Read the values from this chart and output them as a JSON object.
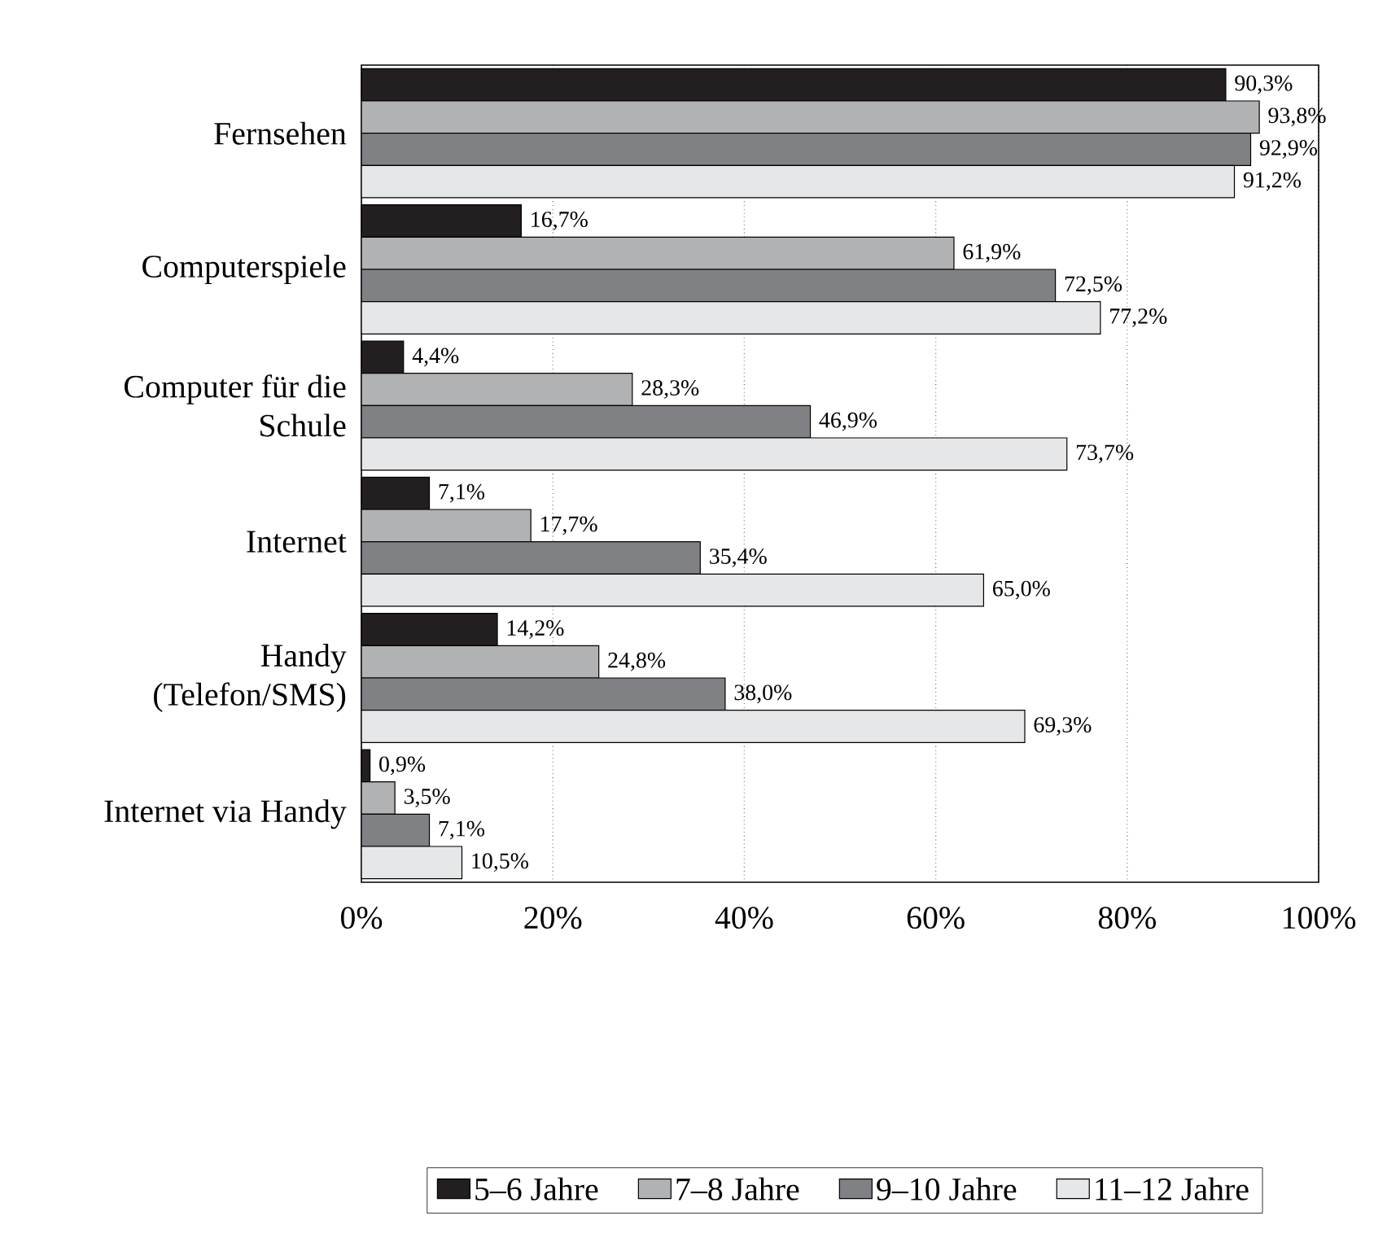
{
  "chart_data": {
    "type": "bar",
    "orientation": "horizontal",
    "categories": [
      "Fernsehen",
      "Computerspiele",
      "Computer für die Schule",
      "Internet",
      "Handy (Telefon/SMS)",
      "Internet via Handy"
    ],
    "series": [
      {
        "name": "5–6 Jahre",
        "color": "#231f20",
        "values": [
          90.3,
          16.7,
          4.4,
          7.1,
          14.2,
          0.9
        ],
        "value_labels": [
          "90,3%",
          "16,7%",
          "4,4%",
          "7,1%",
          "14,2%",
          "0,9%"
        ]
      },
      {
        "name": "7–8 Jahre",
        "color": "#b1b2b4",
        "values": [
          93.8,
          61.9,
          28.3,
          17.7,
          24.8,
          3.5
        ],
        "value_labels": [
          "93,8%",
          "61,9%",
          "28,3%",
          "17,7%",
          "24,8%",
          "3,5%"
        ]
      },
      {
        "name": "9–10 Jahre",
        "color": "#808184",
        "values": [
          92.9,
          72.5,
          46.9,
          35.4,
          38.0,
          7.1
        ],
        "value_labels": [
          "92,9%",
          "72,5%",
          "46,9%",
          "35,4%",
          "38,0%",
          "7,1%"
        ]
      },
      {
        "name": "11–12 Jahre",
        "color": "#e6e7e8",
        "values": [
          91.2,
          77.2,
          73.7,
          65.0,
          69.3,
          10.5
        ],
        "value_labels": [
          "91,2%",
          "77,2%",
          "73,7%",
          "65,0%",
          "69,3%",
          "10,5%"
        ]
      }
    ],
    "xlim": [
      0,
      100
    ],
    "xticks": [
      {
        "value": 0,
        "label": "0%"
      },
      {
        "value": 20,
        "label": "20%"
      },
      {
        "value": 40,
        "label": "40%"
      },
      {
        "value": 60,
        "label": "60%"
      },
      {
        "value": 80,
        "label": "80%"
      },
      {
        "value": 100,
        "label": "100%"
      }
    ],
    "grid": "x",
    "legend": "bottom"
  }
}
